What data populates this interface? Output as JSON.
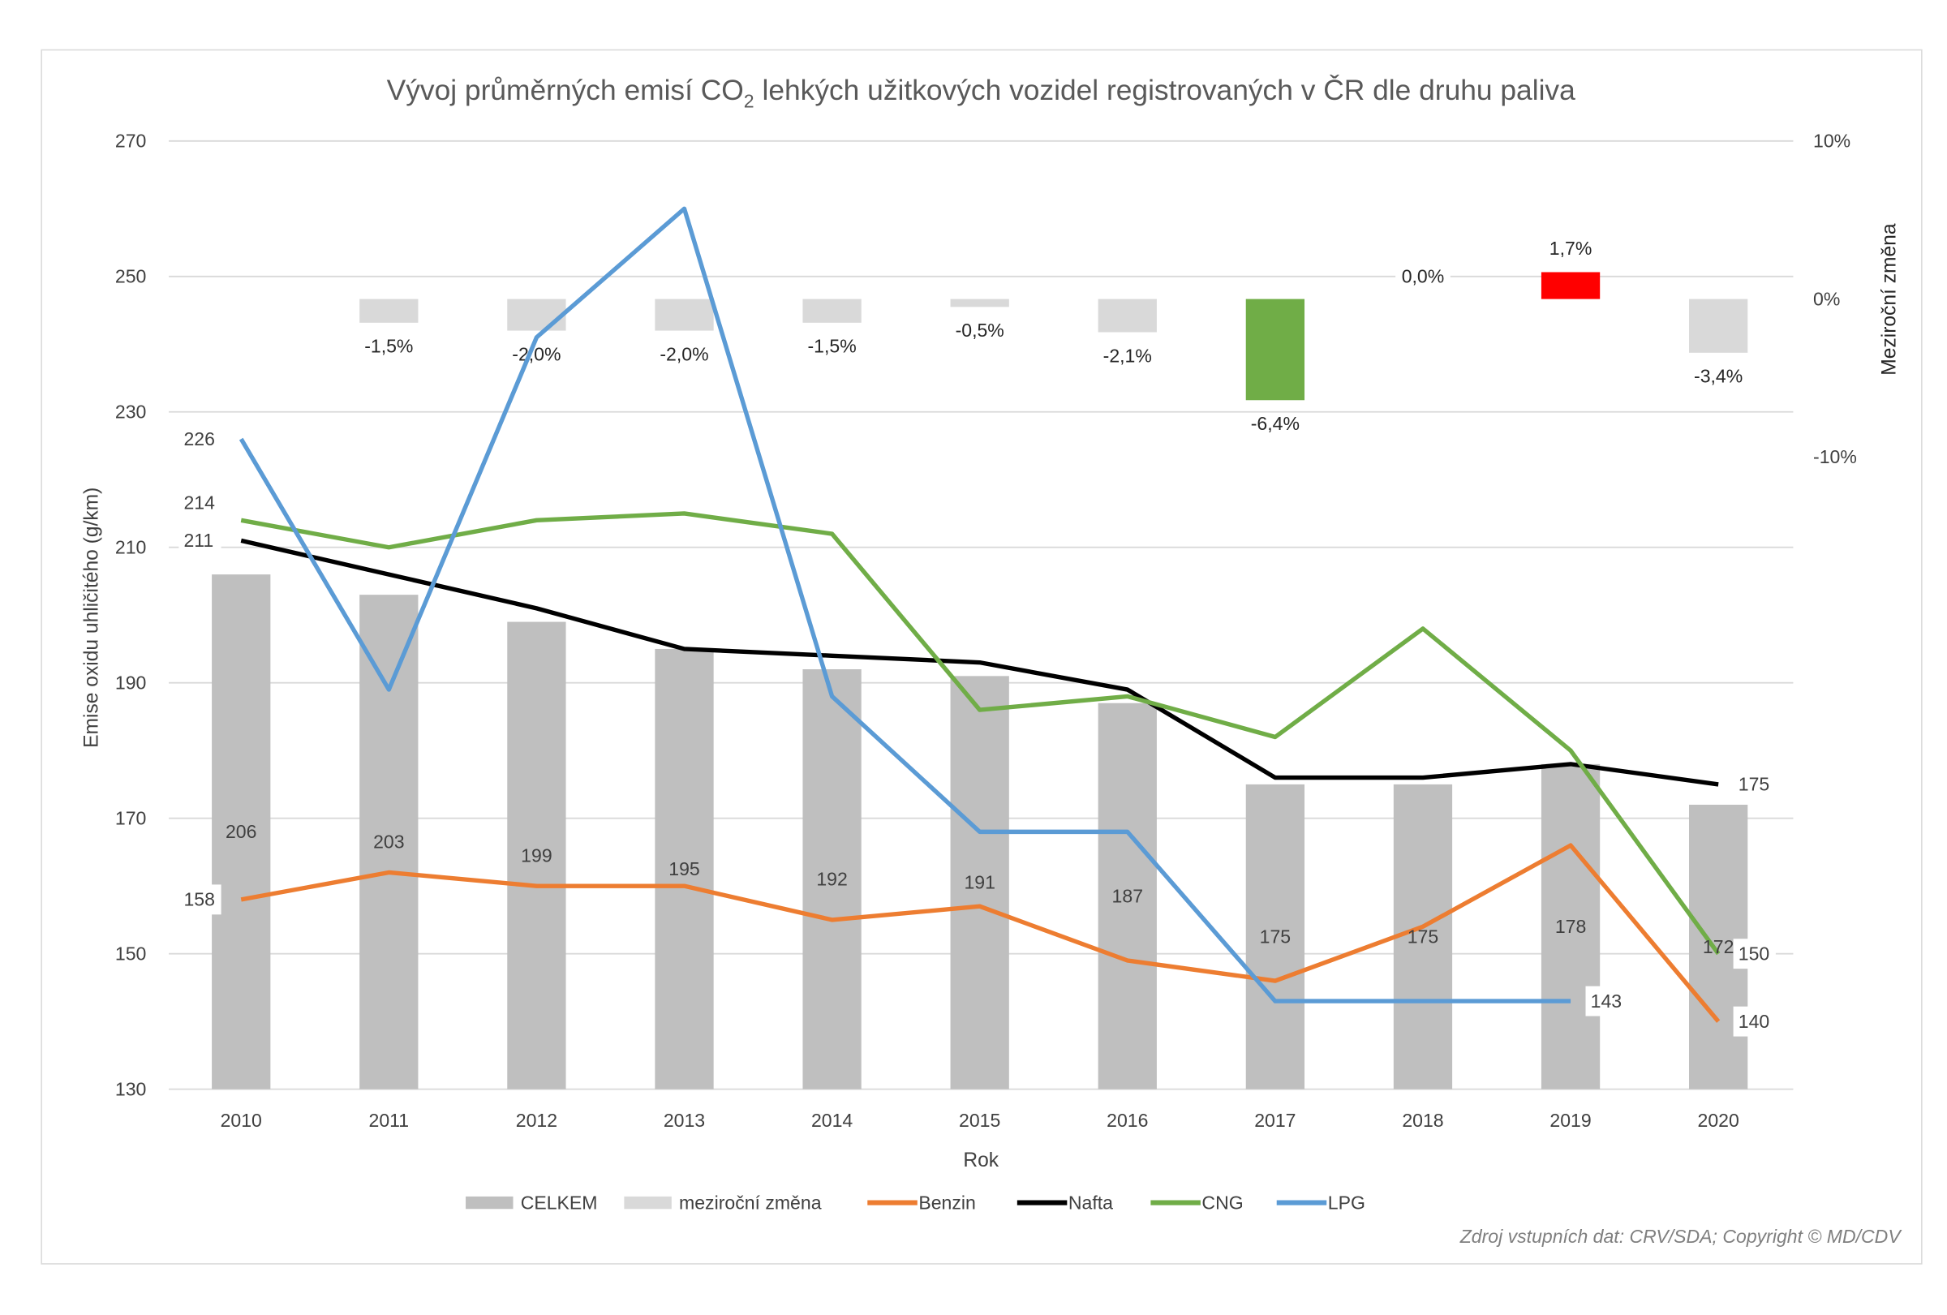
{
  "chart_data": {
    "type": "bar",
    "title": "Vývoj průměrných emisí CO",
    "title_subscript": "2",
    "title_rest": " lehkých užitkových vozidel registrovaných v ČR dle druhu paliva",
    "xlabel": "Rok",
    "ylabel": "Emise oxidu uhličitého (g/km)",
    "y2label": "Meziroční změna",
    "ylim": [
      130,
      270
    ],
    "yticks": [
      "130",
      "150",
      "170",
      "190",
      "210",
      "230",
      "250",
      "270"
    ],
    "y2lim": [
      -50,
      10
    ],
    "y2ticks": [
      "10%",
      "0%",
      "-10%"
    ],
    "grid": true,
    "legend_position": "bottom",
    "categories": [
      "2010",
      "2011",
      "2012",
      "2013",
      "2014",
      "2015",
      "2016",
      "2017",
      "2018",
      "2019",
      "2020"
    ],
    "series": [
      {
        "name": "CELKEM",
        "kind": "bar",
        "axis": "primary",
        "color": "#bfbfbf",
        "values": [
          206,
          203,
          199,
          195,
          192,
          191,
          187,
          175,
          175,
          178,
          172
        ],
        "labels": [
          "206",
          "203",
          "199",
          "195",
          "192",
          "191",
          "187",
          "175",
          "175",
          "178",
          "172"
        ]
      },
      {
        "name": "meziroční změna",
        "kind": "bar",
        "axis": "secondary",
        "color": "#d9d9d9",
        "values": [
          null,
          -1.5,
          -2.0,
          -2.0,
          -1.5,
          -0.5,
          -2.1,
          -6.4,
          0.0,
          1.7,
          -3.4
        ],
        "labels": [
          "",
          "-1,5%",
          "-2,0%",
          "-2,0%",
          "-1,5%",
          "-0,5%",
          "-2,1%",
          "-6,4%",
          "0,0%",
          "1,7%",
          "-3,4%"
        ],
        "highlight_colors": {
          "2017": "#70ad47",
          "2019": "#ff0000"
        }
      },
      {
        "name": "Benzin",
        "kind": "line",
        "axis": "primary",
        "color": "#ed7d31",
        "values": [
          158,
          162,
          160,
          160,
          155,
          157,
          149,
          146,
          154,
          166,
          140
        ]
      },
      {
        "name": "Nafta",
        "kind": "line",
        "axis": "primary",
        "color": "#000000",
        "values": [
          211,
          206,
          201,
          195,
          194,
          193,
          189,
          176,
          176,
          178,
          175
        ]
      },
      {
        "name": "CNG",
        "kind": "line",
        "axis": "primary",
        "color": "#70ad47",
        "values": [
          214,
          210,
          214,
          215,
          212,
          186,
          188,
          182,
          198,
          180,
          150
        ]
      },
      {
        "name": "LPG",
        "kind": "line",
        "axis": "primary",
        "color": "#5b9bd5",
        "values": [
          226,
          189,
          241,
          260,
          188,
          168,
          168,
          143,
          143,
          143,
          null
        ]
      }
    ],
    "line_labels": [
      {
        "series": "LPG",
        "year": "2010",
        "text": "226",
        "side": "left"
      },
      {
        "series": "CNG",
        "year": "2010",
        "text": "214",
        "side": "left"
      },
      {
        "series": "Nafta",
        "year": "2010",
        "text": "211",
        "side": "left"
      },
      {
        "series": "Benzin",
        "year": "2010",
        "text": "158",
        "side": "left"
      },
      {
        "series": "Nafta",
        "year": "2020",
        "text": "175",
        "side": "right"
      },
      {
        "series": "CNG",
        "year": "2020",
        "text": "150",
        "side": "right"
      },
      {
        "series": "Benzin",
        "year": "2020",
        "text": "140",
        "side": "right"
      },
      {
        "series": "LPG",
        "year": "2019",
        "text": "143",
        "side": "right"
      }
    ],
    "source_note": "Zdroj vstupních dat: CRV/SDA; Copyright © MD/CDV"
  }
}
